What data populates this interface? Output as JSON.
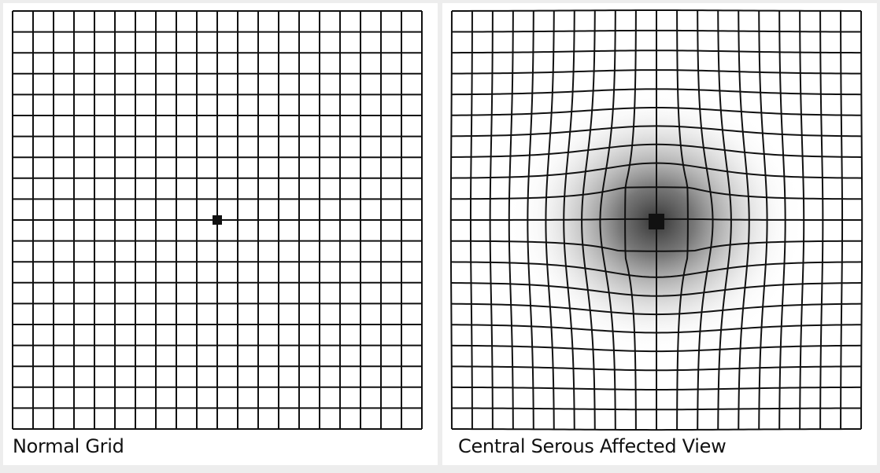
{
  "figures": [
    {
      "caption": "Normal Grid",
      "columns": 20,
      "rows": 20,
      "fixation_dot": "small-square",
      "distortion": "none"
    },
    {
      "caption": "Central Serous Affected View",
      "columns": 20,
      "rows": 20,
      "fixation_dot": "large-square",
      "distortion": "central-bulge-with-dark-blur"
    }
  ],
  "colors": {
    "page_background": "#ededed",
    "panel_background": "#ffffff",
    "grid_line": "#111111",
    "blur_center": "#3a3a3a"
  }
}
